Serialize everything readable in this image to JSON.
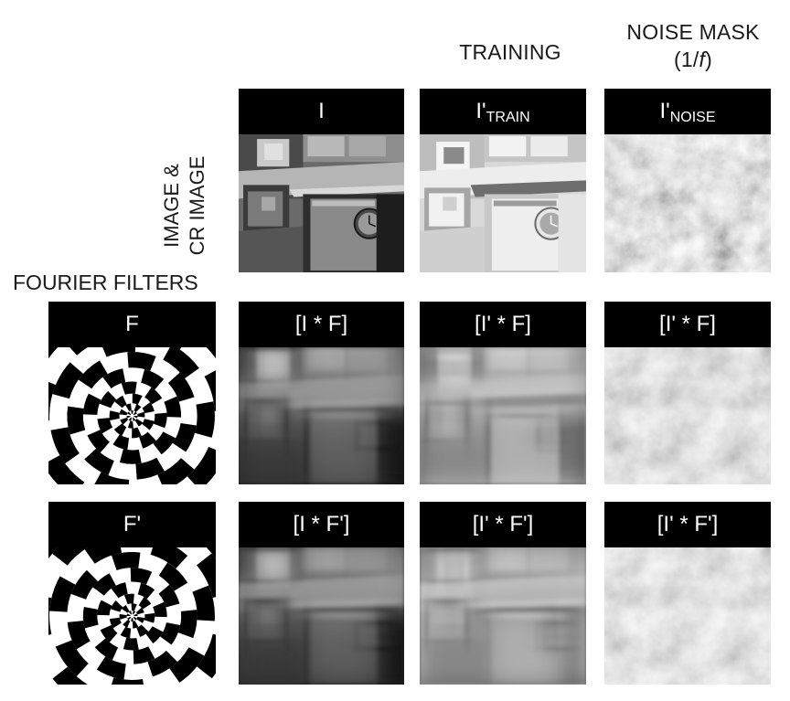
{
  "headers": {
    "training": "TRAINING",
    "noise_line1": "NOISE MASK",
    "noise_line2_prefix": "(1/",
    "noise_line2_var": "f",
    "noise_line2_suffix": ")"
  },
  "row_labels": {
    "image_line1": "IMAGE &",
    "image_line2": "CR IMAGE",
    "fourier_filters": "FOURIER FILTERS"
  },
  "panels": {
    "i": "I",
    "i_train_base": "I'",
    "i_train_sub": "TRAIN",
    "i_noise_base": "I'",
    "i_noise_sub": "NOISE",
    "f": "F",
    "i_star_f": "[I * F]",
    "ip_star_f_train": "[I' * F]",
    "ip_star_f_noise": "[I' * F]",
    "f_prime": "F'",
    "i_star_fp": "[I * F']",
    "ip_star_fp_train": "[I' * F']",
    "ip_star_fp_noise": "[I' * F']"
  }
}
